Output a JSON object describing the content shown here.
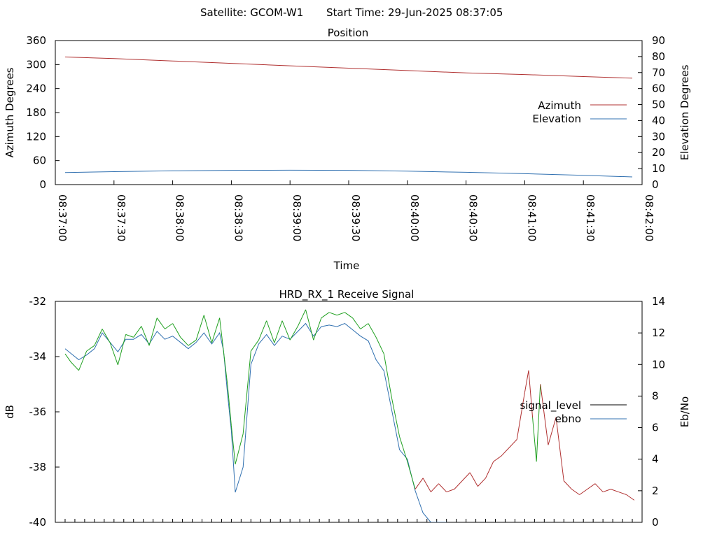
{
  "header": {
    "satellite_label": "Satellite: GCOM-W1",
    "start_label": "Start Time: 29-Jun-2025 08:37:05"
  },
  "chart_data": [
    {
      "type": "line",
      "title": "Position",
      "xlabel": "Time",
      "ylabel": "Azimuth Degrees",
      "y2label": "Elevation Degrees",
      "xlim": [
        "08:37:00",
        "08:42:00"
      ],
      "x_ticks": [
        "08:37:00",
        "08:37:30",
        "08:38:00",
        "08:38:30",
        "08:39:00",
        "08:39:30",
        "08:40:00",
        "08:40:30",
        "08:41:00",
        "08:41:30",
        "08:42:00"
      ],
      "ylim": [
        0,
        360
      ],
      "y_ticks": [
        "0",
        "60",
        "120",
        "180",
        "240",
        "300",
        "360"
      ],
      "y2lim": [
        0,
        90
      ],
      "y2_ticks": [
        "0",
        "10",
        "20",
        "30",
        "40",
        "50",
        "60",
        "70",
        "80",
        "90"
      ],
      "legend_position": "right",
      "colors": {
        "azimuth": "#b03030",
        "elevation": "#3070b0"
      },
      "series": [
        {
          "name": "Azimuth",
          "axis": "left",
          "x": [
            "08:37:05",
            "08:37:30",
            "08:38:00",
            "08:38:30",
            "08:39:00",
            "08:39:30",
            "08:40:00",
            "08:40:30",
            "08:41:00",
            "08:41:30",
            "08:41:55"
          ],
          "values": [
            319,
            315,
            309,
            303,
            297,
            291,
            285,
            279,
            275,
            270,
            266
          ]
        },
        {
          "name": "Elevation",
          "axis": "right",
          "x": [
            "08:37:05",
            "08:37:30",
            "08:38:00",
            "08:38:30",
            "08:39:00",
            "08:39:30",
            "08:40:00",
            "08:40:30",
            "08:41:00",
            "08:41:30",
            "08:41:55"
          ],
          "values": [
            7.5,
            8.1,
            8.6,
            8.9,
            9.0,
            8.9,
            8.4,
            7.7,
            6.8,
            5.8,
            4.8
          ]
        }
      ]
    },
    {
      "type": "line",
      "title": "HRD_RX_1 Receive Signal",
      "ylabel": "dB",
      "y2label": "Eb/No",
      "xlim": [
        "08:37:00",
        "08:42:00"
      ],
      "ylim": [
        -40,
        -32
      ],
      "y_ticks": [
        "-40",
        "-38",
        "-36",
        "-34",
        "-32"
      ],
      "y2lim": [
        0,
        14
      ],
      "y2_ticks": [
        "0",
        "2",
        "4",
        "6",
        "8",
        "10",
        "12",
        "14"
      ],
      "legend_position": "right",
      "colors": {
        "signal_level": "#000000",
        "signal_level_line": "#b03030",
        "signal_level_high": "#20a020",
        "ebno": "#3070b0"
      },
      "series": [
        {
          "name": "signal_level",
          "axis": "left",
          "x": [
            "08:37:05",
            "08:37:08",
            "08:37:12",
            "08:37:16",
            "08:37:20",
            "08:37:24",
            "08:37:28",
            "08:37:32",
            "08:37:36",
            "08:37:40",
            "08:37:44",
            "08:37:48",
            "08:37:52",
            "08:37:56",
            "08:38:00",
            "08:38:04",
            "08:38:08",
            "08:38:12",
            "08:38:16",
            "08:38:20",
            "08:38:24",
            "08:38:26",
            "08:38:28",
            "08:38:30",
            "08:38:32",
            "08:38:36",
            "08:38:40",
            "08:38:44",
            "08:38:48",
            "08:38:52",
            "08:38:56",
            "08:39:00",
            "08:39:04",
            "08:39:08",
            "08:39:12",
            "08:39:16",
            "08:39:20",
            "08:39:24",
            "08:39:28",
            "08:39:32",
            "08:39:36",
            "08:39:40",
            "08:39:44",
            "08:39:48",
            "08:39:52",
            "08:39:56",
            "08:40:00",
            "08:40:04",
            "08:40:08",
            "08:40:12",
            "08:40:16",
            "08:40:20",
            "08:40:24",
            "08:40:28",
            "08:40:32",
            "08:40:36",
            "08:40:40",
            "08:40:44",
            "08:40:48",
            "08:40:52",
            "08:40:56",
            "08:41:00",
            "08:41:02",
            "08:41:04",
            "08:41:06",
            "08:41:08",
            "08:41:12",
            "08:41:16",
            "08:41:20",
            "08:41:24",
            "08:41:28",
            "08:41:32",
            "08:41:36",
            "08:41:40",
            "08:41:44",
            "08:41:48",
            "08:41:52",
            "08:41:56"
          ],
          "values": [
            -33.9,
            -34.2,
            -34.5,
            -33.8,
            -33.6,
            -33.0,
            -33.5,
            -34.3,
            -33.2,
            -33.3,
            -32.9,
            -33.6,
            -32.6,
            -33.0,
            -32.8,
            -33.3,
            -33.6,
            -33.4,
            -32.5,
            -33.5,
            -32.6,
            -33.8,
            -35.0,
            -36.5,
            -37.9,
            -36.8,
            -33.8,
            -33.4,
            -32.7,
            -33.5,
            -32.7,
            -33.4,
            -32.9,
            -32.3,
            -33.4,
            -32.6,
            -32.4,
            -32.5,
            -32.4,
            -32.6,
            -33.0,
            -32.8,
            -33.3,
            -33.9,
            -35.5,
            -36.9,
            -37.8,
            -38.8,
            -38.4,
            -38.9,
            -38.6,
            -38.9,
            -38.8,
            -38.5,
            -38.2,
            -38.7,
            -38.4,
            -37.8,
            -37.6,
            -37.3,
            -37.0,
            -35.3,
            -34.5,
            -36.2,
            -37.8,
            -35.0,
            -37.2,
            -36.2,
            -38.5,
            -38.8,
            -39.0,
            -38.8,
            -38.6,
            -38.9,
            -38.8,
            -38.9,
            -39.0,
            -39.2
          ]
        },
        {
          "name": "ebno",
          "axis": "right",
          "x": [
            "08:37:05",
            "08:37:08",
            "08:37:12",
            "08:37:16",
            "08:37:20",
            "08:37:24",
            "08:37:28",
            "08:37:32",
            "08:37:36",
            "08:37:40",
            "08:37:44",
            "08:37:48",
            "08:37:52",
            "08:37:56",
            "08:38:00",
            "08:38:04",
            "08:38:08",
            "08:38:12",
            "08:38:16",
            "08:38:20",
            "08:38:24",
            "08:38:26",
            "08:38:28",
            "08:38:30",
            "08:38:32",
            "08:38:36",
            "08:38:40",
            "08:38:44",
            "08:38:48",
            "08:38:52",
            "08:38:56",
            "08:39:00",
            "08:39:04",
            "08:39:08",
            "08:39:12",
            "08:39:16",
            "08:39:20",
            "08:39:24",
            "08:39:28",
            "08:39:32",
            "08:39:36",
            "08:39:40",
            "08:39:44",
            "08:39:48",
            "08:39:52",
            "08:39:56",
            "08:40:00",
            "08:40:04",
            "08:40:08",
            "08:40:12",
            "08:40:16",
            "08:40:20"
          ],
          "values": [
            11.0,
            10.7,
            10.3,
            10.6,
            11.0,
            12.0,
            11.4,
            10.8,
            11.6,
            11.6,
            11.9,
            11.3,
            12.1,
            11.6,
            11.8,
            11.4,
            11.0,
            11.4,
            12.0,
            11.3,
            12.0,
            10.9,
            8.2,
            5.8,
            1.9,
            3.5,
            10.0,
            11.3,
            11.9,
            11.2,
            11.8,
            11.6,
            12.1,
            12.6,
            11.8,
            12.4,
            12.5,
            12.4,
            12.6,
            12.2,
            11.8,
            11.5,
            10.3,
            9.6,
            7.1,
            4.6,
            4.0,
            2.0,
            0.6,
            0,
            0,
            0
          ]
        }
      ]
    }
  ]
}
